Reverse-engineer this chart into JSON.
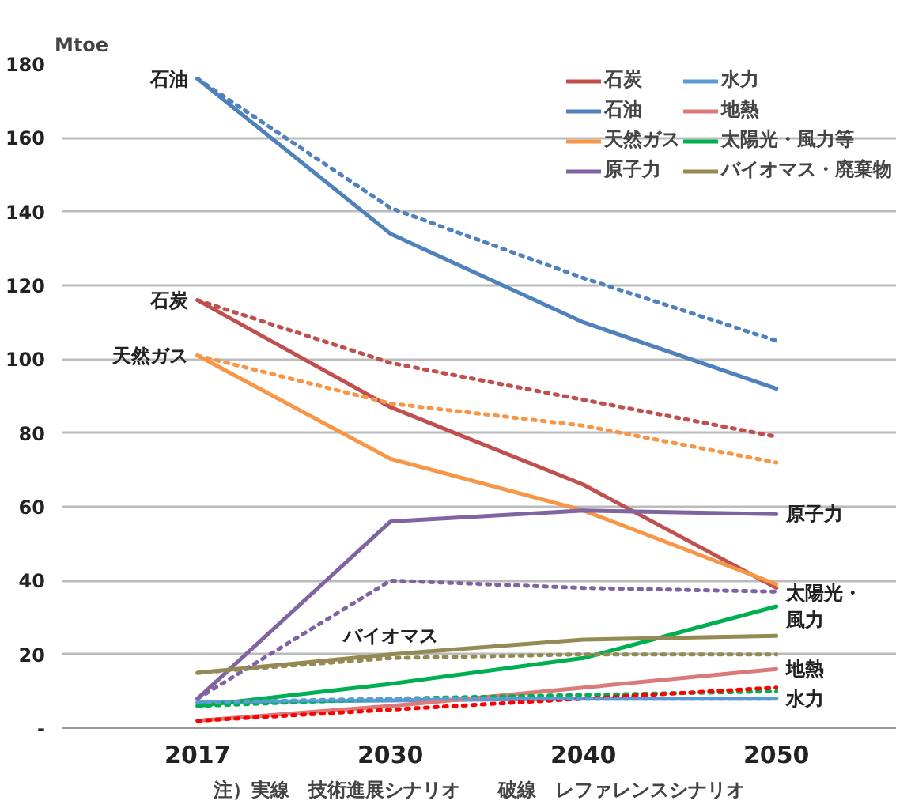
{
  "chart_data": {
    "type": "line",
    "ylabel": "Mtoe",
    "categories": [
      "2017",
      "2030",
      "2040",
      "2050"
    ],
    "ylim": [
      0,
      180
    ],
    "yticks": [
      {
        "value": 0,
        "label": "-"
      },
      20,
      40,
      60,
      80,
      100,
      120,
      140,
      160,
      180
    ],
    "grid": "y",
    "legend": "top right",
    "line_style": "solid",
    "marker": "none",
    "series": [
      {
        "name": "石炭",
        "color": "#c0504d",
        "values": [
          116,
          87,
          66,
          38
        ]
      },
      {
        "name": "石油",
        "color": "#4f81bd",
        "values": [
          176,
          134,
          110,
          92
        ]
      },
      {
        "name": "天然ガス",
        "color": "#f79646",
        "values": [
          101,
          73,
          59,
          39
        ]
      },
      {
        "name": "原子力",
        "color": "#8064a2",
        "values": [
          8,
          56,
          59,
          58
        ]
      },
      {
        "name": "水力",
        "color": "#5b9bd5",
        "values": [
          7,
          7.5,
          8,
          8
        ]
      },
      {
        "name": "地熱",
        "color": "#da7a7a",
        "values": [
          2,
          6,
          11,
          16
        ]
      },
      {
        "name": "太陽光・風力等",
        "color": "#00b050",
        "values": [
          6,
          12,
          19,
          33
        ]
      },
      {
        "name": "バイオマス・廃棄物",
        "color": "#948a54",
        "values": [
          15,
          20,
          24,
          25
        ]
      },
      {
        "color": "#4f81bd",
        "values": [
          176,
          141,
          122,
          105
        ],
        "line_style": "dotted"
      },
      {
        "color": "#c0504d",
        "values": [
          116,
          99,
          89,
          79
        ],
        "line_style": "dotted"
      },
      {
        "color": "#f79646",
        "values": [
          101,
          88,
          82,
          72
        ],
        "line_style": "dotted"
      },
      {
        "color": "#8064a2",
        "values": [
          8,
          40,
          38,
          37
        ],
        "line_style": "dotted"
      },
      {
        "color": "#00b050",
        "values": [
          6,
          8,
          9,
          10
        ],
        "line_style": "dotted"
      },
      {
        "color": "#948a54",
        "values": [
          15,
          19,
          20,
          20
        ],
        "line_style": "dotted"
      },
      {
        "color": "#ff0000",
        "values": [
          2,
          5,
          8,
          11
        ],
        "line_style": "dotted"
      },
      {
        "color": "#5b9bd5",
        "values": [
          7,
          8,
          8,
          8
        ],
        "line_style": "dotted"
      }
    ],
    "annotations": [
      {
        "text": "石油",
        "x": "2017",
        "y": 176
      },
      {
        "text": "石炭",
        "x": "2017",
        "y": 116
      },
      {
        "text": "天然ガス",
        "x": "2017",
        "y": 101
      },
      {
        "text": "原子力",
        "x": "2050",
        "y": 58
      },
      {
        "text": "太陽光・風力",
        "x": "2050",
        "y": 33
      },
      {
        "text": "地熱",
        "x": "2050",
        "y": 16
      },
      {
        "text": "水力",
        "x": "2050",
        "y": 8
      },
      {
        "text": "バイオマス",
        "x": "2030",
        "y": 20
      },
      "注）実線　技術進展シナリオ　　破線　レファレンスシナリオ"
    ]
  }
}
